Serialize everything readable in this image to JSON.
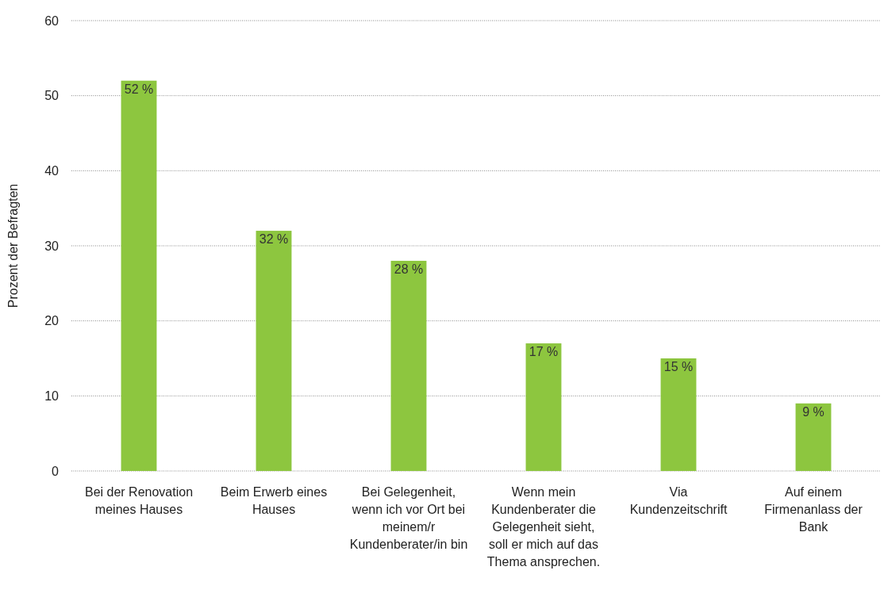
{
  "chart_data": {
    "type": "bar",
    "ylabel": "Prozent der Befragten",
    "categories": [
      "Bei der Renovation meines Hauses",
      "Beim Erwerb eines Hauses",
      "Bei Gelegenheit, wenn ich vor Ort bei meinem/r Kundenberater/in bin",
      "Wenn mein Kundenberater die Gelegenheit sieht, soll er mich auf das Thema ansprechen.",
      "Via Kundenzeitschrift",
      "Auf einem Firmenanlass der Bank"
    ],
    "values": [
      52,
      32,
      28,
      17,
      15,
      9
    ],
    "value_labels": [
      "52 %",
      "32 %",
      "28 %",
      "17 %",
      "15 %",
      "9 %"
    ],
    "color": "#8dc63f",
    "ylim": [
      0,
      60
    ],
    "yticks": [
      0,
      10,
      20,
      30,
      40,
      50,
      60
    ],
    "grid": "y"
  }
}
